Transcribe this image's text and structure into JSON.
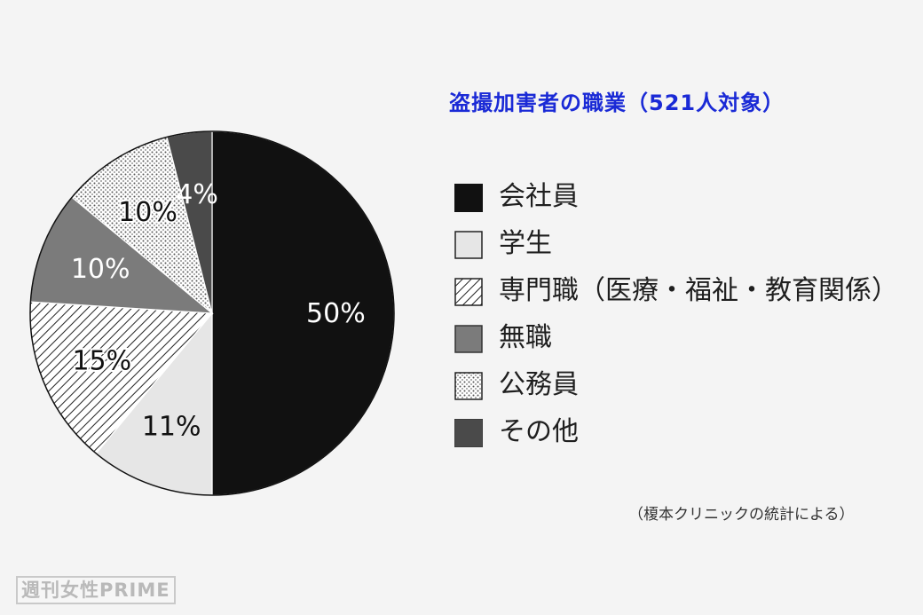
{
  "chart_data": {
    "type": "pie",
    "title": "盗撮加害者の職業（521人対象）",
    "slices": [
      {
        "name": "会社員",
        "value": 50,
        "label": "50%",
        "color": "#111111",
        "pattern": "solid",
        "label_color": "#ffffff"
      },
      {
        "name": "学生",
        "value": 11,
        "label": "11%",
        "color": "#e6e6e6",
        "pattern": "solid",
        "label_color": "#111111"
      },
      {
        "name": "専門職（医療・福祉・教育関係）",
        "value": 15,
        "label": "15%",
        "color": "#ffffff",
        "pattern": "diagonal-hatch",
        "label_color": "#111111"
      },
      {
        "name": "無職",
        "value": 10,
        "label": "10%",
        "color": "#7b7b7b",
        "pattern": "solid",
        "label_color": "#ffffff"
      },
      {
        "name": "公務員",
        "value": 10,
        "label": "10%",
        "color": "#ffffff",
        "pattern": "dots",
        "label_color": "#111111"
      },
      {
        "name": "その他",
        "value": 4,
        "label": "4%",
        "color": "#4a4a4a",
        "pattern": "solid",
        "label_color": "#ffffff"
      }
    ],
    "start": "top",
    "direction": "clockwise",
    "legend_position": "right"
  },
  "source_note": "（榎本クリニックの統計による）",
  "watermark": "週刊女性PRIME"
}
